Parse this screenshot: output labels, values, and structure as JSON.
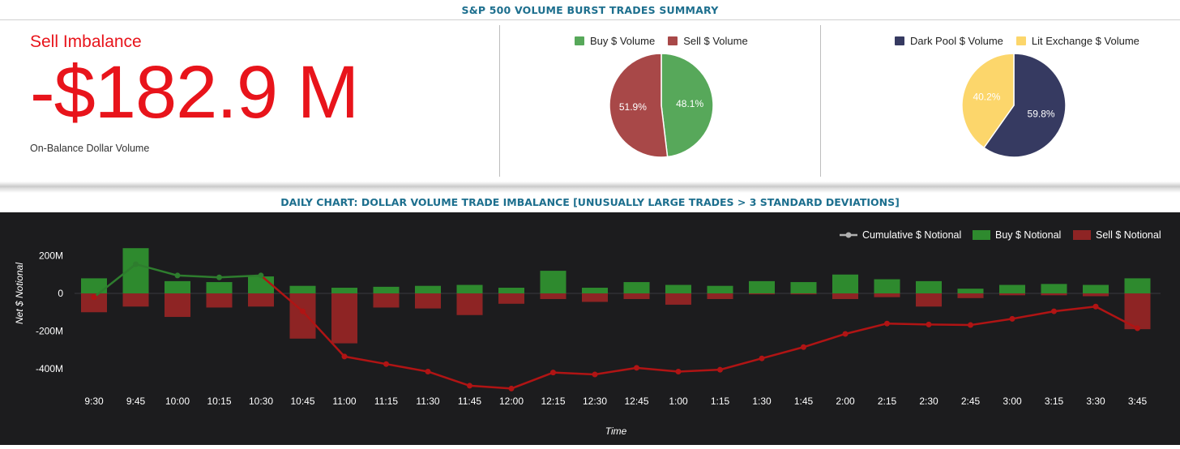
{
  "summary": {
    "title": "S&P 500 VOLUME BURST TRADES SUMMARY",
    "imbalance_label": "Sell Imbalance",
    "imbalance_value": "-$182.9 M",
    "imbalance_caption": "On-Balance Dollar Volume",
    "accent_color": "#e8141b"
  },
  "daily_chart_title": "DAILY CHART: DOLLAR VOLUME TRADE IMBALANCE [UNUSUALLY LARGE TRADES > 3 STANDARD DEVIATIONS]",
  "chart_data": [
    {
      "type": "pie",
      "labels": [
        "Buy $ Volume",
        "Sell $ Volume"
      ],
      "values": [
        48.1,
        51.9
      ],
      "value_labels": [
        "48.1%",
        "51.9%"
      ],
      "colors": [
        "#57a85a",
        "#a84848"
      ],
      "legend": "top"
    },
    {
      "type": "pie",
      "labels": [
        "Dark Pool $ Volume",
        "Lit Exchange $ Volume"
      ],
      "values": [
        59.8,
        40.2
      ],
      "value_labels": [
        "59.8%",
        "40.2%"
      ],
      "colors": [
        "#363a61",
        "#fcd66b"
      ],
      "legend": "top"
    },
    {
      "type": "bar",
      "xlabel": "Time",
      "ylabel": "Net $ Notional",
      "ylim": [
        -500,
        250
      ],
      "yticks": [
        200,
        0,
        -200,
        -400
      ],
      "ytick_labels": [
        "200M",
        "0",
        "-200M",
        "-400M"
      ],
      "categories": [
        "9:30",
        "9:45",
        "10:00",
        "10:15",
        "10:30",
        "10:45",
        "11:00",
        "11:15",
        "11:30",
        "11:45",
        "12:00",
        "12:15",
        "12:30",
        "12:45",
        "1:00",
        "1:15",
        "1:30",
        "1:45",
        "2:00",
        "2:15",
        "2:30",
        "2:45",
        "3:00",
        "3:15",
        "3:30",
        "3:45"
      ],
      "legend": "top-right",
      "series": [
        {
          "name": "Cumulative $ Notional",
          "kind": "line",
          "values": [
            -20,
            155,
            95,
            85,
            95,
            -95,
            -335,
            -375,
            -415,
            -490,
            -505,
            -420,
            -430,
            -395,
            -415,
            -405,
            -345,
            -285,
            -215,
            -160,
            -165,
            -168,
            -135,
            -95,
            -70,
            -185
          ],
          "colors": [
            "#2e7d2e",
            "#b01414"
          ]
        },
        {
          "name": "Buy $ Notional",
          "kind": "bar",
          "color": "#2e8a2e",
          "values": [
            80,
            240,
            65,
            60,
            90,
            40,
            30,
            35,
            40,
            45,
            30,
            120,
            30,
            60,
            45,
            40,
            65,
            60,
            100,
            75,
            65,
            25,
            45,
            50,
            45,
            80
          ]
        },
        {
          "name": "Sell $ Notional",
          "kind": "bar",
          "color": "#8e2424",
          "values": [
            -100,
            -70,
            -125,
            -75,
            -70,
            -240,
            -265,
            -75,
            -80,
            -115,
            -55,
            -30,
            -45,
            -30,
            -60,
            -30,
            -5,
            -5,
            -30,
            -20,
            -70,
            -25,
            -10,
            -10,
            -15,
            -190
          ]
        }
      ]
    }
  ]
}
